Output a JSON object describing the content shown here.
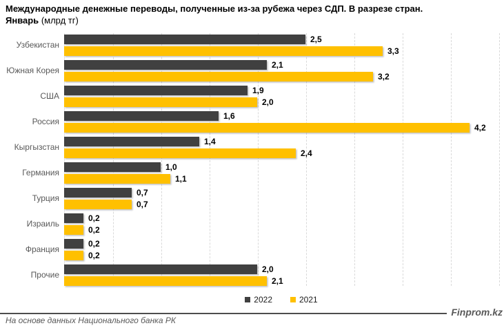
{
  "title": {
    "line1": "Международные денежные переводы, полученные из-за рубежа через СДП. В разрезе стран.",
    "line2_bold": "Январь",
    "line2_unit": "(млрд тг)"
  },
  "chart_data": {
    "type": "bar",
    "orientation": "horizontal",
    "title": "Международные денежные переводы, полученные из-за рубежа через СДП. В разрезе стран. Январь (млрд тг)",
    "xlabel": "",
    "ylabel": "",
    "units": "млрд тг",
    "categories": [
      "Узбекистан",
      "Южная Корея",
      "США",
      "Россия",
      "Кыргызстан",
      "Германия",
      "Турция",
      "Израиль",
      "Франция",
      "Прочие"
    ],
    "series": [
      {
        "name": "2022",
        "color": "#404040",
        "values": [
          2.5,
          2.1,
          1.9,
          1.6,
          1.4,
          1.0,
          0.7,
          0.2,
          0.2,
          2.0
        ]
      },
      {
        "name": "2021",
        "color": "#FFC000",
        "values": [
          3.3,
          3.2,
          2.0,
          4.2,
          2.4,
          1.1,
          0.7,
          0.2,
          0.2,
          2.1
        ]
      }
    ],
    "xlim": [
      0,
      4.5
    ],
    "gridline_interval": 0.5,
    "grid": "vertical-dashed",
    "value_label_decimal_separator": ",",
    "legend_position": "bottom"
  },
  "footer": {
    "source": "На основе данных Национального банка РК",
    "brand": "Finprom.kz"
  }
}
